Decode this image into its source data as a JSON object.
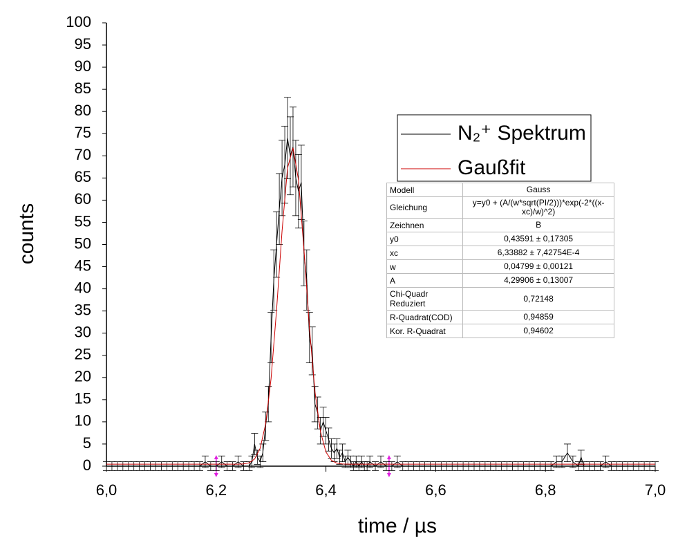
{
  "chart_data": {
    "type": "line",
    "xlabel": "time / µs",
    "ylabel": "counts",
    "xlim": [
      6.0,
      7.0
    ],
    "xticks": [
      {
        "value": 6.0,
        "label": "6,0"
      },
      {
        "value": 6.2,
        "label": "6,2"
      },
      {
        "value": 6.4,
        "label": "6,4"
      },
      {
        "value": 6.6,
        "label": "6,6"
      },
      {
        "value": 6.8,
        "label": "6,8"
      },
      {
        "value": 7.0,
        "label": "7,0"
      }
    ],
    "ylim": [
      0,
      100
    ],
    "yticks": [
      0,
      5,
      10,
      15,
      20,
      25,
      30,
      35,
      40,
      45,
      50,
      55,
      60,
      65,
      70,
      75,
      80,
      85,
      90,
      95,
      100
    ],
    "fit_range": [
      6.2,
      6.515
    ],
    "series": [
      {
        "name": "N₂⁺ Spektrum",
        "color": "#000000",
        "x": [
          6,
          6.01,
          6.02,
          6.03,
          6.04,
          6.05,
          6.06,
          6.07,
          6.08,
          6.09,
          6.1,
          6.11,
          6.12,
          6.13,
          6.14,
          6.15,
          6.16,
          6.17,
          6.18,
          6.19,
          6.2,
          6.21,
          6.22,
          6.23,
          6.24,
          6.25,
          6.26,
          6.265,
          6.27,
          6.275,
          6.28,
          6.285,
          6.29,
          6.295,
          6.3,
          6.305,
          6.31,
          6.315,
          6.32,
          6.325,
          6.33,
          6.335,
          6.34,
          6.345,
          6.35,
          6.355,
          6.36,
          6.365,
          6.37,
          6.375,
          6.38,
          6.385,
          6.39,
          6.395,
          6.4,
          6.405,
          6.41,
          6.415,
          6.42,
          6.425,
          6.43,
          6.435,
          6.44,
          6.445,
          6.45,
          6.455,
          6.46,
          6.465,
          6.47,
          6.475,
          6.48,
          6.49,
          6.5,
          6.51,
          6.52,
          6.53,
          6.54,
          6.55,
          6.56,
          6.57,
          6.58,
          6.59,
          6.6,
          6.61,
          6.62,
          6.63,
          6.64,
          6.65,
          6.66,
          6.67,
          6.68,
          6.69,
          6.7,
          6.71,
          6.72,
          6.73,
          6.74,
          6.75,
          6.76,
          6.77,
          6.78,
          6.79,
          6.8,
          6.81,
          6.82,
          6.83,
          6.84,
          6.85,
          6.86,
          6.865,
          6.87,
          6.88,
          6.89,
          6.9,
          6.91,
          6.92,
          6.93,
          6.94,
          6.95,
          6.96,
          6.97,
          6.98,
          6.99,
          7
        ],
        "values": [
          0,
          0,
          0,
          0,
          0,
          0,
          0,
          0,
          0,
          0,
          0,
          0,
          0,
          0,
          0,
          0,
          0,
          0,
          1,
          0,
          0,
          1,
          0,
          0,
          1,
          0,
          0,
          1,
          5,
          2,
          1,
          3,
          9,
          14,
          29,
          42,
          50,
          58,
          65,
          68,
          74,
          70,
          72,
          65,
          62,
          64,
          48,
          42,
          29,
          26,
          14,
          12,
          8,
          10,
          8,
          6,
          4,
          3,
          4,
          2,
          3,
          1,
          2,
          1,
          0,
          1,
          0,
          1,
          0,
          0,
          1,
          0,
          1,
          0,
          0,
          1,
          0,
          0,
          0,
          0,
          0,
          0,
          0,
          0,
          0,
          0,
          0,
          0,
          0,
          0,
          0,
          0,
          0,
          0,
          0,
          0,
          0,
          0,
          0,
          0,
          0,
          0,
          0,
          0,
          1,
          1,
          3,
          1,
          0,
          2,
          0,
          0,
          0,
          0,
          1,
          0,
          0,
          0,
          0,
          0,
          0,
          0,
          0,
          0
        ],
        "errors": [
          1,
          1,
          1,
          1,
          1,
          1,
          1,
          1,
          1,
          1,
          1,
          1,
          1,
          1,
          1,
          1,
          1,
          1,
          1.3,
          1,
          1,
          1.3,
          1,
          1,
          1.3,
          1,
          1,
          1.3,
          2.4,
          1.6,
          1.3,
          2,
          3.2,
          4,
          5.7,
          6.8,
          7.4,
          8,
          8.5,
          8.7,
          9.2,
          8.8,
          9,
          8.5,
          8.3,
          8.4,
          7.3,
          6.8,
          5.7,
          5.4,
          4,
          3.6,
          3,
          3.3,
          3,
          2.6,
          2.2,
          2,
          2.2,
          1.6,
          2,
          1.3,
          1.6,
          1.3,
          1,
          1.3,
          1,
          1.3,
          1,
          1,
          1.3,
          1,
          1.3,
          1,
          1,
          1.3,
          1,
          1,
          1,
          1,
          1,
          1,
          1,
          1,
          1,
          1,
          1,
          1,
          1,
          1,
          1,
          1,
          1,
          1,
          1,
          1,
          1,
          1,
          1,
          1,
          1,
          1,
          1,
          1,
          1.3,
          1.3,
          2,
          1.3,
          1,
          1.6,
          1,
          1,
          1,
          1,
          1.3,
          1,
          1,
          1,
          1,
          1,
          1,
          1,
          1,
          1
        ]
      },
      {
        "name": "Gaußfit",
        "color": "#cc0000",
        "x": [
          6,
          6.2,
          6.22,
          6.24,
          6.25,
          6.26,
          6.27,
          6.28,
          6.29,
          6.3,
          6.31,
          6.32,
          6.33,
          6.34,
          6.35,
          6.36,
          6.37,
          6.38,
          6.39,
          6.4,
          6.41,
          6.42,
          6.43,
          6.45,
          7
        ],
        "values": [
          0.44,
          0.44,
          0.44,
          0.45,
          0.51,
          0.76,
          1.61,
          4,
          9.44,
          19.77,
          35.2,
          53,
          67.25,
          71.8,
          64.5,
          48.8,
          31.1,
          16.8,
          7.77,
          3.2,
          1.31,
          0.67,
          0.49,
          0.44,
          0.44
        ]
      }
    ],
    "fit_table": {
      "rows": [
        [
          "Modell",
          "Gauss"
        ],
        [
          "Gleichung",
          "y=y0 + (A/(w*sqrt(PI/2)))*exp(-2*((x-xc)/w)^2)"
        ],
        [
          "Zeichnen",
          "B"
        ],
        [
          "y0",
          "0,43591 ± 0,17305"
        ],
        [
          "xc",
          "6,33882 ± 7,42754E-4"
        ],
        [
          "w",
          "0,04799 ± 0,00121"
        ],
        [
          "A",
          "4,29906 ± 0,13007"
        ],
        [
          "Chi-Quadr Reduziert",
          "0,72148"
        ],
        [
          "R-Quadrat(COD)",
          "0,94859"
        ],
        [
          "Kor. R-Quadrat",
          "0,94602"
        ]
      ]
    }
  }
}
